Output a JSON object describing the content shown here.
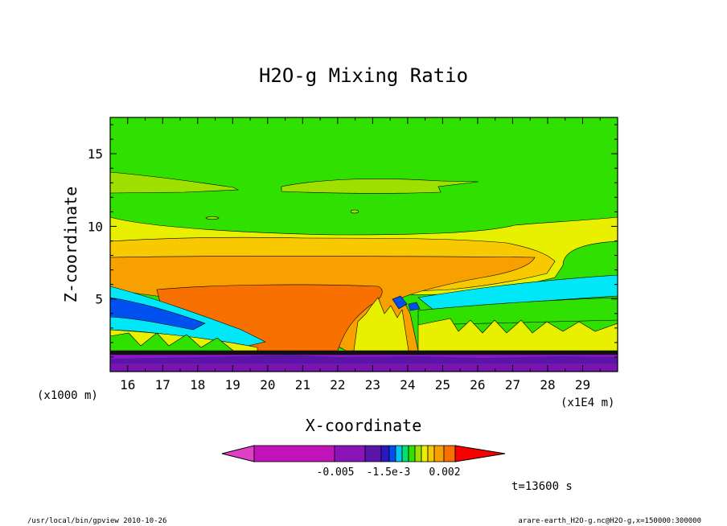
{
  "chart_data": {
    "type": "contour",
    "title": "H2O-g Mixing Ratio",
    "xlabel": "X-coordinate",
    "ylabel": "Z-coordinate",
    "x_unit_label": "(x1E4 m)",
    "y_unit_label": "(x1000 m)",
    "xlim": [
      15.5,
      30
    ],
    "ylim": [
      0,
      17.5
    ],
    "x_ticks": [
      16,
      17,
      18,
      19,
      20,
      21,
      22,
      23,
      24,
      25,
      26,
      27,
      28,
      29
    ],
    "y_ticks": [
      5,
      10,
      15
    ],
    "time_label": "t=13600 s",
    "colorbar": {
      "labels": [
        "-0.005",
        "-1.5e-3",
        "0.002"
      ],
      "colors": [
        "#e040c8",
        "#c014b8",
        "#8a14b8",
        "#5a14a8",
        "#2818c0",
        "#0050f0",
        "#00c8f0",
        "#00e070",
        "#30e000",
        "#a0e000",
        "#e8f000",
        "#f8c800",
        "#f8a000",
        "#f87000",
        "#f80000"
      ]
    },
    "bands": [
      {
        "name": "very-low-purple",
        "z_range": [
          0,
          1.5
        ],
        "color": "#7a14b0"
      },
      {
        "name": "mid-purple",
        "z_range": [
          0.3,
          1.2
        ],
        "color": "#8a18c0"
      },
      {
        "name": "upper-green",
        "z_range": [
          10.5,
          17.5
        ],
        "color": "#30e000"
      },
      {
        "name": "light-green-layer",
        "z_range": [
          12.5,
          13.7
        ],
        "color": "#a0e000"
      },
      {
        "name": "yellow-layer",
        "z_range": [
          8.5,
          10.2
        ],
        "color": "#e8f000"
      },
      {
        "name": "light-orange-layer",
        "z_range": [
          7.6,
          9.5
        ],
        "color": "#f8c800"
      },
      {
        "name": "orange-core",
        "z_range": [
          5.8,
          7.6
        ],
        "color": "#f8a000"
      },
      {
        "name": "dark-orange-core",
        "z_range": [
          1.5,
          5.8
        ],
        "color": "#f87000"
      },
      {
        "name": "cyan-right-layer",
        "z_range": [
          4,
          6.2
        ],
        "color": "#00e8f8"
      },
      {
        "name": "blue-left-layer",
        "z_range": [
          3,
          5
        ],
        "color": "#0050f0"
      }
    ]
  },
  "footer": {
    "left": "/usr/local/bin/gpview  2010-10-26",
    "right": "arare-earth_H2O-g.nc@H2O-g,x=150000:300000"
  }
}
